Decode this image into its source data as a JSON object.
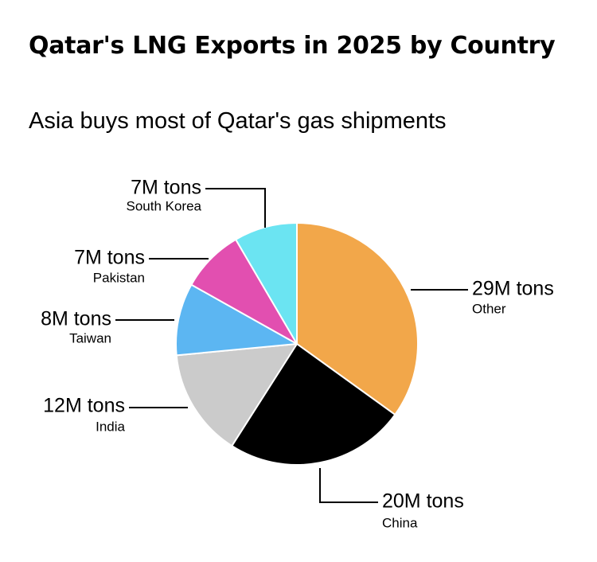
{
  "title": "Qatar's LNG Exports in 2025 by Country",
  "subtitle": "Asia buys most of Qatar's gas shipments",
  "chart_data": {
    "type": "pie",
    "unit": "M tons",
    "slices": [
      {
        "label": "Other",
        "value": 29,
        "display": "29M tons",
        "color": "#f2a74a"
      },
      {
        "label": "China",
        "value": 20,
        "display": "20M tons",
        "color": "#000000"
      },
      {
        "label": "India",
        "value": 12,
        "display": "12M tons",
        "color": "#cbcbcb"
      },
      {
        "label": "Taiwan",
        "value": 8,
        "display": "8M tons",
        "color": "#5cb6f2"
      },
      {
        "label": "Pakistan",
        "value": 7,
        "display": "7M tons",
        "color": "#e24fb0"
      },
      {
        "label": "South Korea",
        "value": 7,
        "display": "7M tons",
        "color": "#6be4f2"
      }
    ]
  }
}
